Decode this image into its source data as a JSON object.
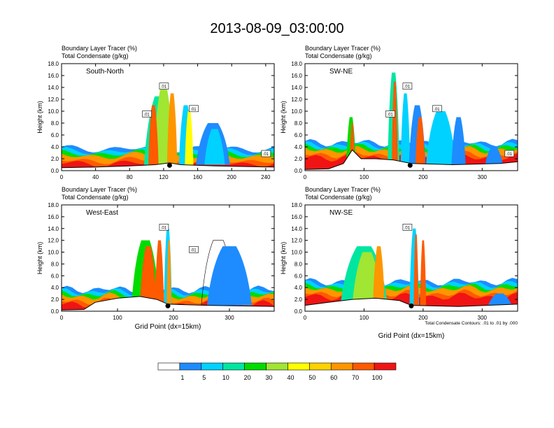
{
  "figure": {
    "title": "2013-08-09_03:00:00",
    "xlabel": "Grid Point (dx=15km)",
    "contour_note": "Total Condensate Contours: .01 to .01 by .000",
    "colorbar": {
      "labels": [
        "1",
        "5",
        "10",
        "20",
        "30",
        "40",
        "50",
        "60",
        "70",
        "100"
      ],
      "colors": [
        "#ffffff",
        "#1e8cff",
        "#00d2ff",
        "#00e6a0",
        "#00dc00",
        "#a0e632",
        "#ffff00",
        "#ffd200",
        "#ff9600",
        "#ff5a00",
        "#f01414"
      ]
    },
    "colors": {
      "high": "#f01414",
      "high2": "#ff5a00",
      "mid": "#ff9600",
      "cool": "#1e8cff",
      "cyan": "#00d2ff",
      "green": "#00dc00"
    }
  },
  "chart_data": [
    {
      "type": "heatmap",
      "panel": "South-North",
      "label1": "Boundary Layer Tracer    (%)",
      "label2": "Total Condensate    (g/kg)",
      "ylabel": "Height (km)",
      "xlim": [
        0,
        250
      ],
      "ylim": [
        0,
        18
      ],
      "xticks": [
        "0",
        "40",
        "80",
        "120",
        "160",
        "200",
        "240"
      ],
      "yticks": [
        "0.0",
        "2.0",
        "4.0",
        "6.0",
        "8.0",
        "10.0",
        "12.0",
        "14.0",
        "16.0",
        "18.0"
      ],
      "marker_x": 127,
      "terrain": [
        [
          0,
          0.5
        ],
        [
          40,
          0.6
        ],
        [
          80,
          0.8
        ],
        [
          110,
          1.0
        ],
        [
          127,
          1.3
        ],
        [
          140,
          1.0
        ],
        [
          180,
          0.8
        ],
        [
          250,
          0.6
        ]
      ],
      "contour_labels": [
        ".01",
        ".01",
        ".01",
        ".01"
      ]
    },
    {
      "type": "heatmap",
      "panel": "SW-NE",
      "label1": "Boundary Layer Tracer    (%)",
      "label2": "Total Condensate    (g/kg)",
      "ylabel": "Height (km)",
      "xlim": [
        0,
        360
      ],
      "ylim": [
        0,
        18
      ],
      "xticks": [
        "0",
        "100",
        "200",
        "300"
      ],
      "yticks": [
        "0.0",
        "2.0",
        "4.0",
        "6.0",
        "8.0",
        "10.0",
        "12.0",
        "14.0",
        "16.0",
        "18.0"
      ],
      "marker_x": 178,
      "terrain": [
        [
          0,
          0.2
        ],
        [
          40,
          0.3
        ],
        [
          65,
          1.2
        ],
        [
          80,
          3.5
        ],
        [
          95,
          2.0
        ],
        [
          120,
          2.0
        ],
        [
          150,
          1.8
        ],
        [
          180,
          1.2
        ],
        [
          250,
          1.0
        ],
        [
          330,
          1.2
        ],
        [
          360,
          1.5
        ]
      ],
      "contour_labels": [
        ".01",
        ".01",
        ".01",
        ".01"
      ]
    },
    {
      "type": "heatmap",
      "panel": "West-East",
      "label1": "Boundary Layer Tracer    (%)",
      "label2": "Total Condensate    (g/kg)",
      "ylabel": "Height (km)",
      "xlim": [
        0,
        380
      ],
      "ylim": [
        0,
        18
      ],
      "xticks": [
        "0",
        "100",
        "200",
        "300"
      ],
      "yticks": [
        "0.0",
        "2.0",
        "4.0",
        "6.0",
        "8.0",
        "10.0",
        "12.0",
        "14.0",
        "16.0",
        "18.0"
      ],
      "marker_x": 190,
      "terrain": [
        [
          0,
          0.2
        ],
        [
          40,
          0.3
        ],
        [
          60,
          1.5
        ],
        [
          100,
          2.2
        ],
        [
          140,
          2.5
        ],
        [
          170,
          2.0
        ],
        [
          190,
          1.2
        ],
        [
          260,
          1.0
        ],
        [
          380,
          0.8
        ]
      ],
      "contour_labels": [
        ".01",
        ".01"
      ]
    },
    {
      "type": "heatmap",
      "panel": "NW-SE",
      "label1": "Boundary Layer Tracer    (%)",
      "label2": "Total Condensate    (g/kg)",
      "ylabel": "Height (km)",
      "xlim": [
        0,
        360
      ],
      "ylim": [
        0,
        18
      ],
      "xticks": [
        "0",
        "100",
        "200",
        "300"
      ],
      "yticks": [
        "0.0",
        "2.0",
        "4.0",
        "6.0",
        "8.0",
        "10.0",
        "12.0",
        "14.0",
        "16.0",
        "18.0"
      ],
      "marker_x": 180,
      "terrain": [
        [
          0,
          1.0
        ],
        [
          40,
          1.5
        ],
        [
          80,
          2.0
        ],
        [
          120,
          2.2
        ],
        [
          160,
          1.8
        ],
        [
          180,
          1.0
        ],
        [
          260,
          0.8
        ],
        [
          360,
          1.2
        ]
      ],
      "contour_labels": [
        ".01"
      ]
    }
  ]
}
